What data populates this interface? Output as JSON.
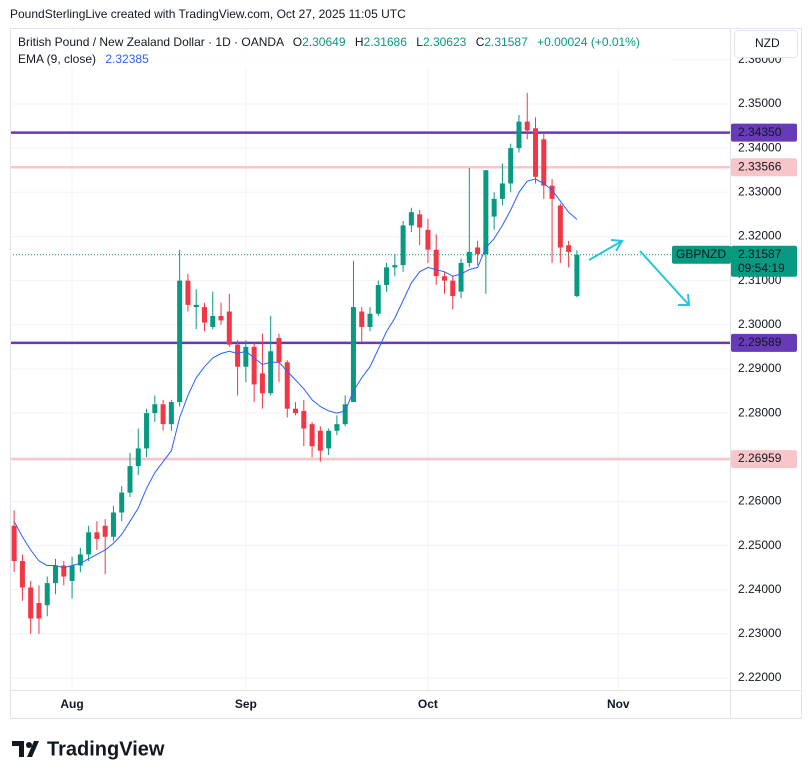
{
  "chart_data": {
    "type": "candlestick",
    "attribution": "PoundSterlingLive created with TradingView.com, Oct 27, 2025 11:05 UTC",
    "title": "British Pound / New Zealand Dollar · 1D · OANDA",
    "ohlc_labels": [
      "O",
      "H",
      "L",
      "C"
    ],
    "change_label": "+0.00024 (+0.01%)",
    "currency": "NZD",
    "symbol": "GBPNZD",
    "countdown": "09:54:19",
    "logo": "TradingView",
    "up_color": "#089981",
    "down_color": "#f23645",
    "grid": true,
    "categories": [
      null,
      null,
      null,
      null,
      null,
      null,
      null,
      "Aug",
      null,
      null,
      null,
      null,
      null,
      null,
      null,
      null,
      null,
      null,
      null,
      null,
      null,
      null,
      null,
      null,
      null,
      null,
      null,
      null,
      "Sep",
      null,
      null,
      null,
      null,
      null,
      null,
      null,
      null,
      null,
      null,
      null,
      null,
      null,
      null,
      null,
      null,
      null,
      null,
      null,
      null,
      null,
      "Oct",
      null,
      null,
      null,
      null,
      null,
      null,
      null,
      null,
      null,
      null,
      null,
      null,
      null,
      null,
      null,
      null,
      null,
      null,
      null,
      null,
      null,
      null,
      "Nov",
      null,
      null,
      null,
      null,
      null,
      null,
      null,
      null,
      null,
      null,
      null,
      null,
      null
    ],
    "open": [
      2.2545,
      2.2465,
      2.2405,
      2.237,
      2.2365,
      2.2415,
      2.2455,
      2.242,
      2.2455,
      2.248,
      2.253,
      2.2545,
      2.252,
      2.2575,
      2.262,
      2.268,
      2.272,
      2.28,
      2.282,
      2.2775,
      2.2825,
      2.31,
      2.304,
      2.304,
      2.2995,
      2.302,
      2.303,
      2.2955,
      2.2905,
      2.295,
      2.289,
      2.2845,
      2.297,
      2.2915,
      2.281,
      2.2805,
      2.2775,
      2.276,
      2.272,
      2.276,
      2.2775,
      2.2825,
      2.303,
      2.2995,
      2.3025,
      2.309,
      2.313,
      2.3135,
      2.3225,
      2.325,
      2.3215,
      2.317,
      2.311,
      2.31,
      2.3075,
      2.314,
      2.3175,
      2.316,
      2.3245,
      2.3285,
      2.332,
      2.34,
      2.346,
      2.3445,
      2.342,
      2.3315,
      2.327,
      2.318,
      2.30649,
      null,
      null,
      null,
      null,
      null,
      null,
      null,
      null,
      null,
      null,
      null,
      null,
      null,
      null,
      null,
      null,
      null,
      null
    ],
    "high": [
      2.258,
      2.248,
      2.242,
      2.241,
      2.243,
      2.247,
      2.2465,
      2.2475,
      2.2495,
      2.2545,
      2.2555,
      2.256,
      2.259,
      2.2635,
      2.271,
      2.2765,
      2.281,
      2.284,
      2.283,
      2.283,
      2.317,
      2.3115,
      2.308,
      2.305,
      2.3075,
      2.305,
      2.307,
      2.2965,
      2.2965,
      2.296,
      2.298,
      2.302,
      2.298,
      2.292,
      2.2825,
      2.283,
      2.278,
      2.277,
      2.2765,
      2.2795,
      2.284,
      2.3145,
      2.304,
      2.304,
      2.31,
      2.314,
      2.316,
      2.3235,
      2.3265,
      2.326,
      2.324,
      2.3205,
      2.312,
      2.311,
      2.315,
      2.3355,
      2.319,
      2.335,
      2.33,
      2.3365,
      2.341,
      2.3475,
      2.3525,
      2.347,
      2.3435,
      2.333,
      2.3275,
      2.319,
      2.31686,
      null,
      null,
      null,
      null,
      null,
      null,
      null,
      null,
      null,
      null,
      null,
      null,
      null,
      null,
      null,
      null,
      null,
      null
    ],
    "low": [
      2.244,
      2.2375,
      2.23,
      2.23,
      2.234,
      2.239,
      2.241,
      2.238,
      2.244,
      2.2465,
      2.249,
      2.2435,
      2.251,
      2.2555,
      2.261,
      2.266,
      2.27,
      2.278,
      2.276,
      2.276,
      2.2815,
      2.303,
      2.299,
      2.2985,
      2.299,
      2.3,
      2.295,
      2.284,
      2.287,
      2.2825,
      2.281,
      2.284,
      2.287,
      2.279,
      2.2795,
      2.2725,
      2.27,
      2.269,
      2.2705,
      2.275,
      2.277,
      2.283,
      2.296,
      2.2985,
      2.302,
      2.3075,
      2.311,
      2.312,
      2.321,
      2.318,
      2.314,
      2.309,
      2.307,
      2.3035,
      2.306,
      2.313,
      2.3135,
      2.307,
      2.3215,
      2.327,
      2.33,
      2.339,
      2.342,
      2.332,
      2.3285,
      2.314,
      2.314,
      2.313,
      2.30623,
      null,
      null,
      null,
      null,
      null,
      null,
      null,
      null,
      null,
      null,
      null,
      null,
      null,
      null,
      null,
      null,
      null,
      null
    ],
    "close": [
      2.2465,
      2.2405,
      2.2335,
      2.2335,
      2.2415,
      2.2455,
      2.243,
      2.2455,
      2.248,
      2.253,
      2.2515,
      2.252,
      2.2575,
      2.262,
      2.268,
      2.272,
      2.28,
      2.282,
      2.2775,
      2.2825,
      2.31,
      2.3045,
      2.3045,
      2.3005,
      2.302,
      2.301,
      2.2955,
      2.2905,
      2.295,
      2.2865,
      2.2845,
      2.294,
      2.2915,
      2.281,
      2.28,
      2.2765,
      2.2725,
      2.2715,
      2.276,
      2.2775,
      2.282,
      2.304,
      2.2995,
      2.3025,
      2.309,
      2.313,
      2.3135,
      2.3225,
      2.3255,
      2.322,
      2.317,
      2.311,
      2.31,
      2.3065,
      2.314,
      2.3165,
      2.316,
      2.335,
      2.3285,
      2.332,
      2.34,
      2.346,
      2.344,
      2.3335,
      2.3315,
      2.3285,
      2.3175,
      2.3165,
      2.31587,
      null,
      null,
      null,
      null,
      null,
      null,
      null,
      null,
      null,
      null,
      null,
      null,
      null,
      null,
      null,
      null,
      null,
      null
    ],
    "ema": {
      "name": "EMA (9, close)",
      "color": "#2962ff",
      "values": [
        2.2555,
        2.252,
        2.249,
        2.2465,
        2.2455,
        2.2455,
        2.245,
        2.2455,
        2.246,
        2.247,
        2.248,
        2.249,
        2.2505,
        2.2525,
        2.2555,
        2.2585,
        2.263,
        2.2665,
        2.269,
        2.2715,
        2.279,
        2.284,
        2.288,
        2.2905,
        2.2925,
        2.2935,
        2.294,
        2.2935,
        2.294,
        2.2925,
        2.291,
        2.2915,
        2.2915,
        2.2895,
        2.2875,
        2.2855,
        2.283,
        2.2815,
        2.2805,
        2.28,
        2.2805,
        2.285,
        2.288,
        2.2905,
        2.2945,
        2.2985,
        2.3015,
        2.3055,
        2.3095,
        2.312,
        2.313,
        2.3125,
        2.312,
        2.311,
        2.3115,
        2.3125,
        2.313,
        2.3175,
        2.3195,
        2.3225,
        2.326,
        2.33,
        2.3325,
        2.333,
        2.332,
        2.3305,
        2.328,
        2.3255,
        2.32385,
        null,
        null,
        null,
        null,
        null,
        null,
        null,
        null,
        null,
        null,
        null,
        null,
        null,
        null,
        null,
        null,
        null,
        null
      ]
    },
    "levels": [
      {
        "value": 2.3435,
        "label": "2.34350",
        "color": "#673ab7"
      },
      {
        "value": 2.33566,
        "label": "2.33566",
        "color": "#f8c5c8"
      },
      {
        "value": 2.29589,
        "label": "2.29589",
        "color": "#673ab7"
      },
      {
        "value": 2.26959,
        "label": "2.26959",
        "color": "#f8c5c8"
      }
    ],
    "ylim": [
      2.2173,
      2.3672
    ],
    "yticks": [
      {
        "value": 2.22,
        "label": "2.22000"
      },
      {
        "value": 2.23,
        "label": "2.23000"
      },
      {
        "value": 2.24,
        "label": "2.24000"
      },
      {
        "value": 2.25,
        "label": "2.25000"
      },
      {
        "value": 2.26,
        "label": "2.26000"
      },
      {
        "value": 2.27,
        "label": "2.27000"
      },
      {
        "value": 2.28,
        "label": "2.28000"
      },
      {
        "value": 2.29,
        "label": "2.29000"
      },
      {
        "value": 2.3,
        "label": "2.30000"
      },
      {
        "value": 2.31,
        "label": "2.31000"
      },
      {
        "value": 2.32,
        "label": "2.32000"
      },
      {
        "value": 2.33,
        "label": "2.33000"
      },
      {
        "value": 2.34,
        "label": "2.34000"
      },
      {
        "value": 2.35,
        "label": "2.35000"
      },
      {
        "value": 2.36,
        "label": "2.36000"
      }
    ]
  }
}
